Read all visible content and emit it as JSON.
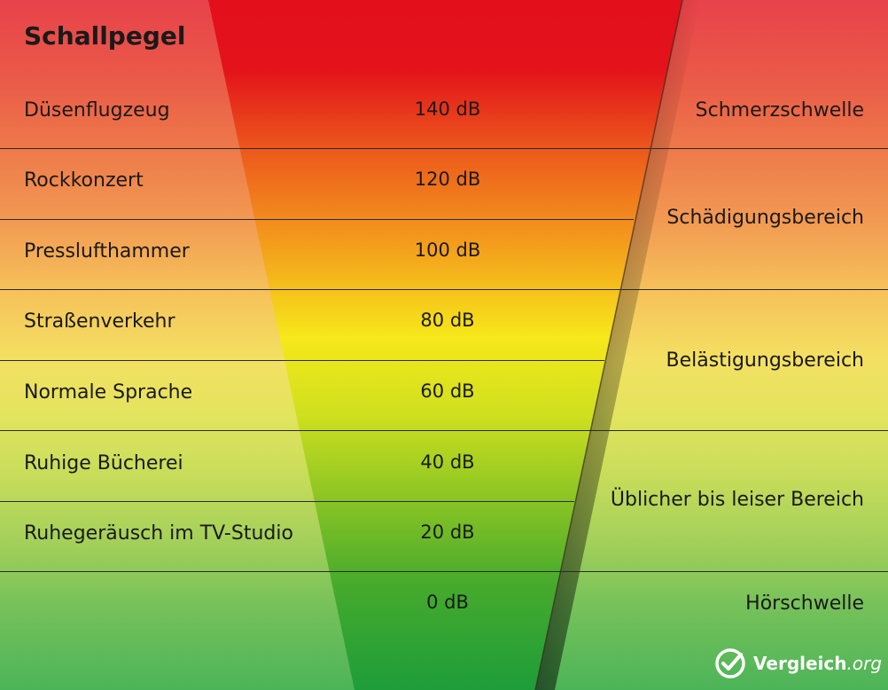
{
  "title": "Schallpegel",
  "rows": [
    {
      "source": "Düsenflugzeug",
      "level": "140 dB"
    },
    {
      "source": "Rockkonzert",
      "level": "120 dB"
    },
    {
      "source": "Presslufthammer",
      "level": "100 dB"
    },
    {
      "source": "Straßenverkehr",
      "level": "80 dB"
    },
    {
      "source": "Normale Sprache",
      "level": "60 dB"
    },
    {
      "source": "Ruhige Bücherei",
      "level": "40 dB"
    },
    {
      "source": "Ruhegeräusch im TV-Studio",
      "level": "20 dB"
    },
    {
      "source": "",
      "level": "0 dB"
    }
  ],
  "categories": [
    "Schmerzschwelle",
    "Schädigungsbereich",
    "Belästigungsbereich",
    "Üblicher bis leiser Bereich",
    "Hörschwelle"
  ],
  "logo": {
    "name": "Vergleich",
    "tld": ".org",
    "icon": "checkmark-circle-icon"
  },
  "colors": {
    "red": "#e3121b",
    "orange": "#f07a1c",
    "yellow": "#f6e81a",
    "green": "#1e9d3a",
    "text": "#1a1a1a"
  }
}
